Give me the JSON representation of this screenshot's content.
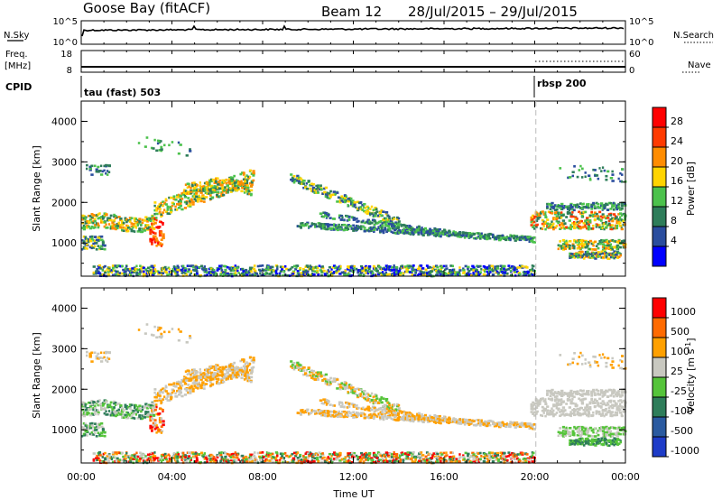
{
  "header": {
    "station": "Goose Bay (fitACF)",
    "beam": "Beam 12",
    "dates": "28/Jul/2015 – 29/Jul/2015"
  },
  "top_panels": {
    "nsky": {
      "label": "N.Sky",
      "ticks": [
        "10^5",
        "10^0"
      ]
    },
    "nsearch": {
      "label": "N.Search",
      "ticks": [
        "10^5",
        "10^0"
      ]
    },
    "freq": {
      "label_line1": "Freq.",
      "label_line2": "[MHz]",
      "ticks": [
        "18",
        "8"
      ]
    },
    "nave": {
      "label": "Nave",
      "ticks": [
        "60",
        "0"
      ]
    },
    "cpid": {
      "label": "CPID",
      "modes": [
        "tau (fast) 503",
        "rbsp 200"
      ]
    }
  },
  "colors": {
    "power_scale": [
      "#0000ff",
      "#2a4d9e",
      "#2e7d5a",
      "#4cc24c",
      "#ffd400",
      "#ff8c00",
      "#ff3a00",
      "#ff0000"
    ],
    "velocity_scale": [
      "#1e3cc8",
      "#2a5aa0",
      "#2e7d5a",
      "#55c43a",
      "#c8c8c0",
      "#ffa000",
      "#ff6a00",
      "#ff0000"
    ]
  },
  "chart_data": [
    {
      "type": "heatmap",
      "name": "power",
      "ylabel": "Slant Range [km]",
      "yticks": [
        "4000",
        "3000",
        "2000",
        "1000"
      ],
      "ylim": [
        180,
        4500
      ],
      "xticks": [
        "00:00",
        "04:00",
        "08:00",
        "12:00",
        "16:00",
        "20:00",
        "00:00"
      ],
      "xlim_hours": [
        0,
        24
      ],
      "colorbar_label": "Power [dB]",
      "colorbar_ticks": [
        "28",
        "24",
        "20",
        "16",
        "12",
        "8",
        "4"
      ],
      "colorbar_range": [
        0,
        32
      ]
    },
    {
      "type": "heatmap",
      "name": "velocity",
      "ylabel": "Slant Range [km]",
      "yticks": [
        "4000",
        "3000",
        "2000",
        "1000"
      ],
      "ylim": [
        180,
        4500
      ],
      "xticks": [
        "00:00",
        "04:00",
        "08:00",
        "12:00",
        "16:00",
        "20:00",
        "00:00"
      ],
      "xlim_hours": [
        0,
        24
      ],
      "xlabel": "Time UT",
      "colorbar_label": "Velocity [m s^-1]",
      "colorbar_ticks": [
        "1000",
        "500",
        "100",
        "25",
        "-25",
        "-100",
        "-500",
        "-1000"
      ]
    }
  ]
}
